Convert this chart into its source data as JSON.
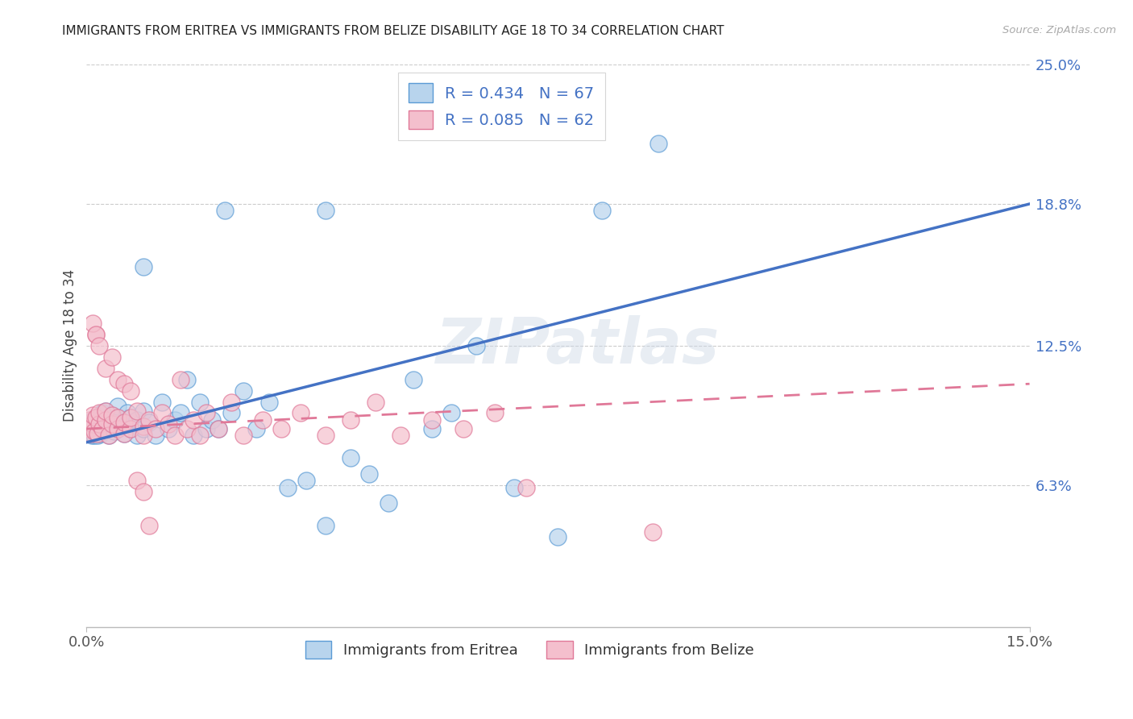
{
  "title": "IMMIGRANTS FROM ERITREA VS IMMIGRANTS FROM BELIZE DISABILITY AGE 18 TO 34 CORRELATION CHART",
  "source": "Source: ZipAtlas.com",
  "ylabel": "Disability Age 18 to 34",
  "xmin": 0.0,
  "xmax": 0.15,
  "ymin": 0.0,
  "ymax": 0.25,
  "ytick_labels": [
    "6.3%",
    "12.5%",
    "18.8%",
    "25.0%"
  ],
  "ytick_values": [
    0.063,
    0.125,
    0.188,
    0.25
  ],
  "legend_eritrea_R": "0.434",
  "legend_eritrea_N": "67",
  "legend_belize_R": "0.085",
  "legend_belize_N": "62",
  "color_eritrea_fill": "#b8d4ed",
  "color_eritrea_edge": "#5b9bd5",
  "color_belize_fill": "#f4bfcd",
  "color_belize_edge": "#e07898",
  "color_eritrea_line": "#4472c4",
  "color_belize_line": "#e07898",
  "watermark": "ZIPatlas",
  "eritrea_line_x": [
    0.0,
    0.15
  ],
  "eritrea_line_y": [
    0.082,
    0.188
  ],
  "belize_line_x": [
    0.0,
    0.15
  ],
  "belize_line_y": [
    0.088,
    0.108
  ],
  "eritrea_x": [
    0.0003,
    0.0005,
    0.0006,
    0.0008,
    0.001,
    0.001,
    0.0012,
    0.0013,
    0.0015,
    0.0015,
    0.0018,
    0.002,
    0.002,
    0.0022,
    0.0025,
    0.003,
    0.003,
    0.003,
    0.0035,
    0.004,
    0.004,
    0.0045,
    0.005,
    0.005,
    0.005,
    0.006,
    0.006,
    0.0065,
    0.007,
    0.007,
    0.008,
    0.008,
    0.009,
    0.009,
    0.01,
    0.011,
    0.012,
    0.013,
    0.014,
    0.015,
    0.016,
    0.017,
    0.018,
    0.019,
    0.02,
    0.021,
    0.023,
    0.025,
    0.027,
    0.029,
    0.032,
    0.035,
    0.038,
    0.042,
    0.045,
    0.048,
    0.052,
    0.055,
    0.058,
    0.062,
    0.068,
    0.075,
    0.082,
    0.091,
    0.038,
    0.022,
    0.009
  ],
  "eritrea_y": [
    0.088,
    0.086,
    0.09,
    0.085,
    0.088,
    0.092,
    0.085,
    0.09,
    0.087,
    0.093,
    0.085,
    0.088,
    0.092,
    0.086,
    0.095,
    0.088,
    0.092,
    0.096,
    0.085,
    0.09,
    0.094,
    0.087,
    0.088,
    0.093,
    0.098,
    0.086,
    0.091,
    0.095,
    0.088,
    0.093,
    0.085,
    0.092,
    0.088,
    0.096,
    0.091,
    0.085,
    0.1,
    0.088,
    0.092,
    0.095,
    0.11,
    0.085,
    0.1,
    0.088,
    0.092,
    0.088,
    0.095,
    0.105,
    0.088,
    0.1,
    0.062,
    0.065,
    0.045,
    0.075,
    0.068,
    0.055,
    0.11,
    0.088,
    0.095,
    0.125,
    0.062,
    0.04,
    0.185,
    0.215,
    0.185,
    0.185,
    0.16
  ],
  "belize_x": [
    0.0003,
    0.0005,
    0.0007,
    0.001,
    0.001,
    0.0012,
    0.0015,
    0.0015,
    0.0018,
    0.002,
    0.002,
    0.0025,
    0.003,
    0.003,
    0.0035,
    0.004,
    0.004,
    0.005,
    0.005,
    0.006,
    0.006,
    0.007,
    0.007,
    0.008,
    0.009,
    0.009,
    0.01,
    0.011,
    0.012,
    0.013,
    0.014,
    0.015,
    0.016,
    0.017,
    0.018,
    0.019,
    0.021,
    0.023,
    0.025,
    0.028,
    0.031,
    0.034,
    0.038,
    0.042,
    0.046,
    0.05,
    0.055,
    0.06,
    0.065,
    0.07,
    0.001,
    0.0015,
    0.002,
    0.003,
    0.004,
    0.005,
    0.006,
    0.007,
    0.008,
    0.009,
    0.01,
    0.09
  ],
  "belize_y": [
    0.088,
    0.092,
    0.086,
    0.09,
    0.094,
    0.087,
    0.093,
    0.13,
    0.086,
    0.09,
    0.095,
    0.088,
    0.092,
    0.096,
    0.085,
    0.09,
    0.094,
    0.088,
    0.093,
    0.086,
    0.091,
    0.088,
    0.093,
    0.096,
    0.089,
    0.085,
    0.092,
    0.088,
    0.095,
    0.09,
    0.085,
    0.11,
    0.088,
    0.092,
    0.085,
    0.095,
    0.088,
    0.1,
    0.085,
    0.092,
    0.088,
    0.095,
    0.085,
    0.092,
    0.1,
    0.085,
    0.092,
    0.088,
    0.095,
    0.062,
    0.135,
    0.13,
    0.125,
    0.115,
    0.12,
    0.11,
    0.108,
    0.105,
    0.065,
    0.06,
    0.045,
    0.042
  ]
}
